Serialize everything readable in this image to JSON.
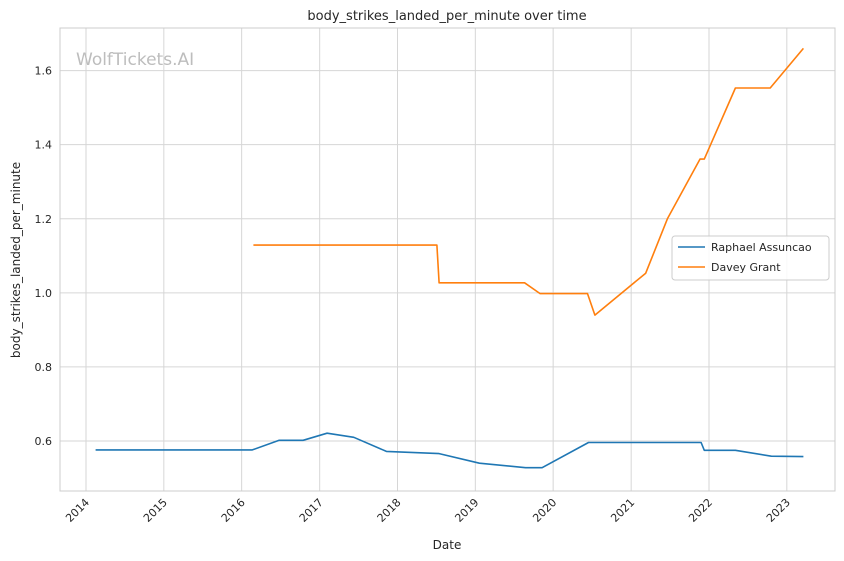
{
  "watermark": "WolfTickets.AI",
  "chart_data": {
    "type": "line",
    "title": "body_strikes_landed_per_minute over time",
    "xlabel": "Date",
    "ylabel": "body_strikes_landed_per_minute",
    "x_type": "date",
    "xlim": [
      "2013-09-01",
      "2023-08-15"
    ],
    "ylim": [
      0.465,
      1.715
    ],
    "x_ticks": [
      "2014",
      "2015",
      "2016",
      "2017",
      "2018",
      "2019",
      "2020",
      "2021",
      "2022",
      "2023"
    ],
    "y_ticks": [
      0.6,
      0.8,
      1.0,
      1.2,
      1.4,
      1.6
    ],
    "y_tick_labels": [
      "0.6",
      "0.8",
      "1.0",
      "1.2",
      "1.4",
      "1.6"
    ],
    "grid": true,
    "legend": "center-right",
    "series": [
      {
        "name": "Raphael Assuncao",
        "color": "#1f77b4",
        "points": [
          [
            "2014-02-15",
            0.576
          ],
          [
            "2016-02-20",
            0.576
          ],
          [
            "2016-06-25",
            0.602
          ],
          [
            "2016-10-15",
            0.602
          ],
          [
            "2017-02-05",
            0.621
          ],
          [
            "2017-06-10",
            0.61
          ],
          [
            "2017-11-10",
            0.572
          ],
          [
            "2018-07-15",
            0.566
          ],
          [
            "2019-01-20",
            0.54
          ],
          [
            "2019-08-25",
            0.528
          ],
          [
            "2019-11-10",
            0.528
          ],
          [
            "2020-06-15",
            0.596
          ],
          [
            "2021-11-25",
            0.596
          ],
          [
            "2021-12-10",
            0.575
          ],
          [
            "2022-05-05",
            0.575
          ],
          [
            "2022-10-20",
            0.559
          ],
          [
            "2023-03-20",
            0.558
          ]
        ]
      },
      {
        "name": "Davey Grant",
        "color": "#ff7f0e",
        "points": [
          [
            "2016-02-25",
            1.129
          ],
          [
            "2018-07-05",
            1.129
          ],
          [
            "2018-07-15",
            1.027
          ],
          [
            "2019-08-20",
            1.027
          ],
          [
            "2019-11-01",
            0.998
          ],
          [
            "2020-06-10",
            0.998
          ],
          [
            "2020-07-15",
            0.94
          ],
          [
            "2021-03-10",
            1.053
          ],
          [
            "2021-06-20",
            1.2
          ],
          [
            "2021-11-20",
            1.361
          ],
          [
            "2021-12-10",
            1.361
          ],
          [
            "2022-05-05",
            1.553
          ],
          [
            "2022-10-15",
            1.553
          ],
          [
            "2023-03-20",
            1.66
          ]
        ]
      }
    ]
  }
}
